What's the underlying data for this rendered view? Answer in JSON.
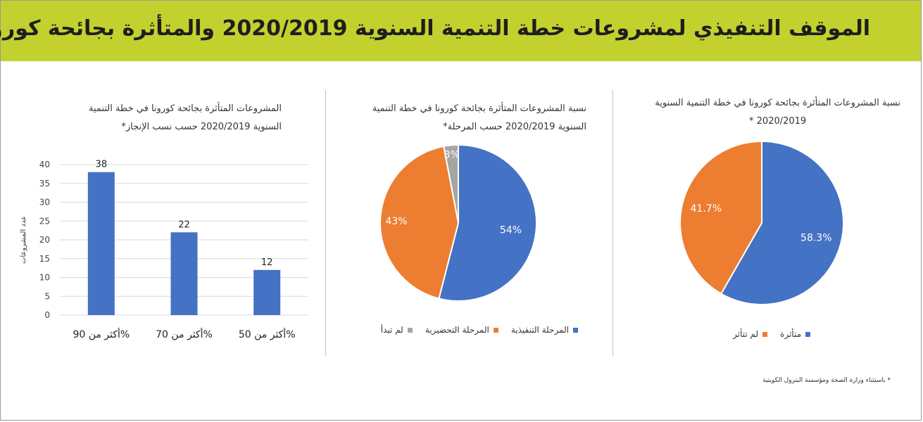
{
  "header": {
    "title": "الموقف التنفيذي لمشروعات خطة التنمية السنوية 2020/2019 والمتأثرة بجائحة كورونا*",
    "background_color": "#c3d12f"
  },
  "footnote": "* باستثناء وزارة الصحة ومؤسسة البترول الكويتية",
  "colors": {
    "blue": "#4472c4",
    "orange": "#ed7d31",
    "gray": "#a5a5a5"
  },
  "chart_data": [
    {
      "type": "bar",
      "title_line1": "المشروعات المتأثرة بجائحة كورونا في خطة التنمية",
      "title_line2": "السنوية  2020/2019 حسب نسب الإنجاز*",
      "categories": [
        "أكثر من 90%",
        "أكثر من 70%",
        "أكثر من 50%"
      ],
      "values": [
        38,
        22,
        12
      ],
      "ylabel": "عدد المشروعات",
      "ylim": [
        0,
        40
      ],
      "yticks": [
        0,
        5,
        10,
        15,
        20,
        25,
        30,
        35,
        40
      ],
      "grid": true,
      "color": "#4472c4"
    },
    {
      "type": "pie",
      "title_line1": "نسبة المشروعات المتأثرة بجائحة كورونا في خطة التنمية",
      "title_line2": "السنوية  2020/2019 حسب المرحلة*",
      "slices": [
        {
          "name": "المرحلة التنفيذية",
          "value": 54,
          "label": "54%",
          "color": "#4472c4"
        },
        {
          "name": "المرحلة التحضيرية",
          "value": 43,
          "label": "43%",
          "color": "#ed7d31"
        },
        {
          "name": "لم تبدأ",
          "value": 3,
          "label": "3%",
          "color": "#a5a5a5"
        }
      ],
      "legend": "bottom"
    },
    {
      "type": "pie",
      "title_line1": "نسبة المشروعات المتأثرة بجائحة كورونا في خطة التنمية السنوية",
      "title_line2": "2020/2019 *",
      "slices": [
        {
          "name": "متأثرة",
          "value": 58.3,
          "label": "58.3%",
          "color": "#4472c4"
        },
        {
          "name": "لم تتأثر",
          "value": 41.7,
          "label": "41.7%",
          "color": "#ed7d31"
        }
      ],
      "legend": "bottom"
    }
  ]
}
